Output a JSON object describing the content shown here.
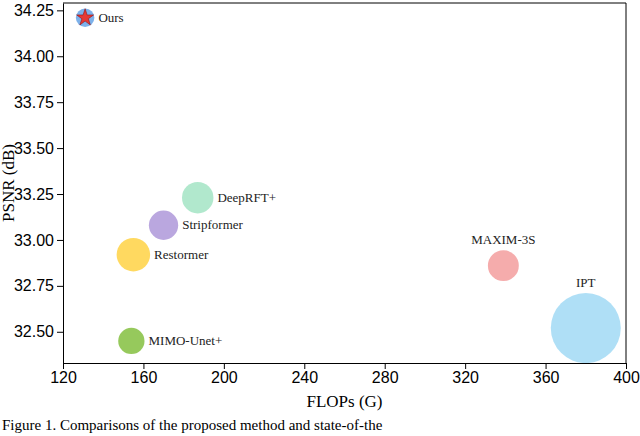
{
  "chart_data": {
    "type": "scatter",
    "x_label": "FLOPs (G)",
    "y_label": "PSNR (dB)",
    "caption": "Figure 1. Comparisons of the proposed method and state-of-the",
    "xlim": [
      120,
      400
    ],
    "xticks": [
      120,
      160,
      200,
      240,
      280,
      320,
      360,
      400
    ],
    "ylim": [
      32.33,
      34.29
    ],
    "yticks": [
      {
        "value": 32.5,
        "label": "32.50"
      },
      32.75,
      {
        "value": 33,
        "label": "33.00"
      },
      33.25,
      {
        "value": 33.5,
        "label": "33.50"
      },
      33.75,
      {
        "value": 34,
        "label": "34.00"
      },
      34.25
    ],
    "grid": false,
    "series": [
      {
        "name": "Ours",
        "color": "#6fa8e8",
        "marker": "star",
        "x": [
          131
        ],
        "values": [
          34.21
        ],
        "sizes": [
          8
        ]
      },
      {
        "name": "DeepRFT+",
        "color": "#a8e6c8",
        "x": [
          187
        ],
        "values": [
          33.23
        ],
        "sizes": [
          23
        ]
      },
      {
        "name": "Stripformer",
        "color": "#b39ddb",
        "x": [
          170
        ],
        "values": [
          33.08
        ],
        "sizes": [
          20
        ]
      },
      {
        "name": "Restormer",
        "color": "#ffd54f",
        "x": [
          155
        ],
        "values": [
          32.92
        ],
        "sizes": [
          26.1
        ]
      },
      {
        "name": "MIMO-Unet+",
        "color": "#8bc34a",
        "x": [
          154
        ],
        "values": [
          32.45
        ],
        "sizes": [
          16.1
        ]
      },
      {
        "name": "MAXIM-3S",
        "color": "#f4a3a3",
        "x": [
          339
        ],
        "values": [
          32.86
        ],
        "sizes": [
          22.2
        ]
      },
      {
        "name": "IPT",
        "color": "#a6dcf5",
        "x": [
          380
        ],
        "values": [
          32.52
        ],
        "sizes": [
          114
        ]
      }
    ]
  }
}
